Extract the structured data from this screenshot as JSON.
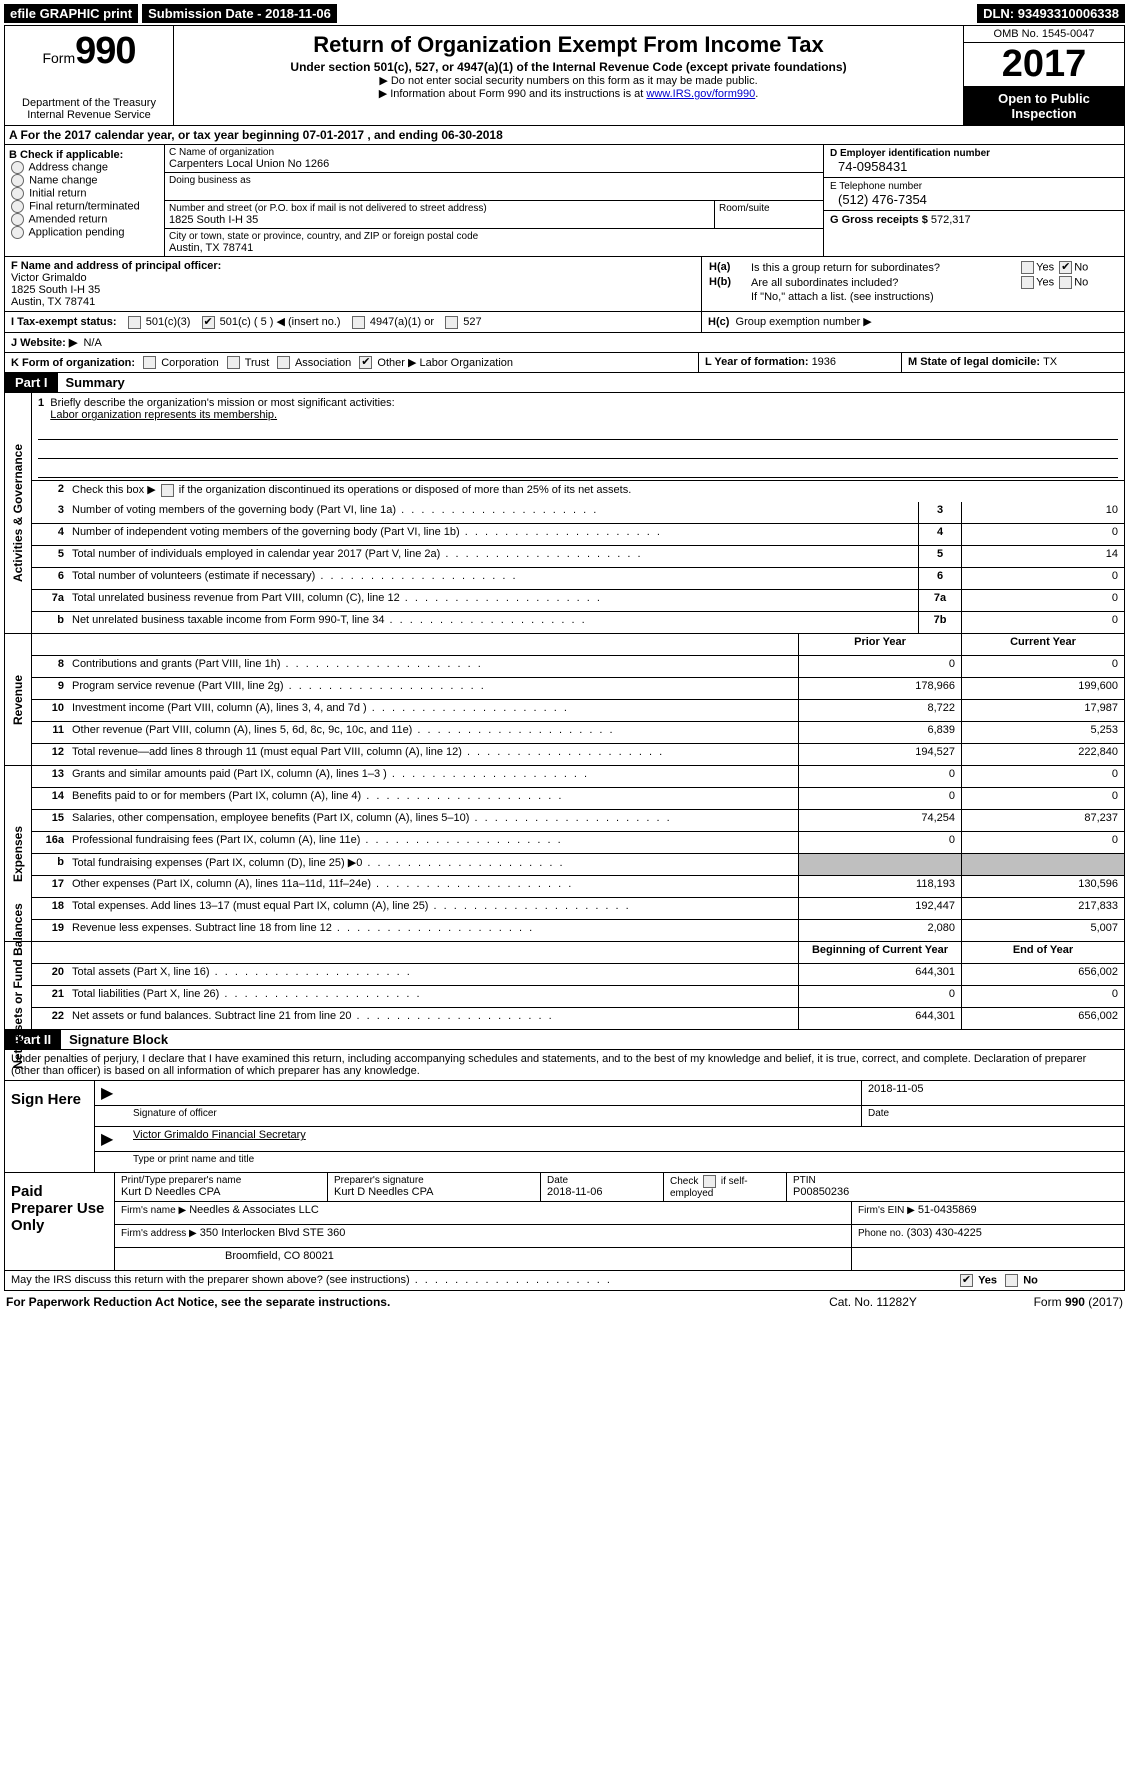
{
  "topbar": {
    "efile": "efile GRAPHIC print",
    "submission_label": "Submission Date - ",
    "submission_date": "2018-11-06",
    "dln_label": "DLN: ",
    "dln": "93493310006338"
  },
  "header": {
    "form_word": "Form",
    "form_num": "990",
    "dept1": "Department of the Treasury",
    "dept2": "Internal Revenue Service",
    "title": "Return of Organization Exempt From Income Tax",
    "sub": "Under section 501(c), 527, or 4947(a)(1) of the Internal Revenue Code (except private foundations)",
    "note1": "▶ Do not enter social security numbers on this form as it may be made public.",
    "note2_pre": "▶ Information about Form 990 and its instructions is at ",
    "note2_link": "www.IRS.gov/form990",
    "omb": "OMB No. 1545-0047",
    "year": "2017",
    "inspect": "Open to Public Inspection"
  },
  "lineA": "A  For the 2017 calendar year, or tax year beginning 07-01-2017   , and ending 06-30-2018",
  "colB": {
    "title": "B Check if applicable:",
    "opts": [
      "Address change",
      "Name change",
      "Initial return",
      "Final return/terminated",
      "Amended return",
      "Application pending"
    ]
  },
  "colC": {
    "name_lbl": "C Name of organization",
    "name": "Carpenters Local Union No 1266",
    "dba_lbl": "Doing business as",
    "addr_lbl": "Number and street (or P.O. box if mail is not delivered to street address)",
    "addr": "1825 South I-H 35",
    "suite_lbl": "Room/suite",
    "city_lbl": "City or town, state or province, country, and ZIP or foreign postal code",
    "city": "Austin, TX  78741"
  },
  "colD": {
    "ein_lbl": "D Employer identification number",
    "ein": "74-0958431",
    "tel_lbl": "E Telephone number",
    "tel": "(512) 476-7354",
    "gross_lbl": "G Gross receipts $ ",
    "gross": "572,317"
  },
  "rowF": {
    "lbl": "F  Name and address of principal officer:",
    "name": "Victor Grimaldo",
    "addr": "1825 South I-H 35",
    "city": "Austin, TX  78741"
  },
  "rowH": {
    "a": "Is this a group return for subordinates?",
    "b": "Are all subordinates included?",
    "bnote": "If \"No,\" attach a list. (see instructions)",
    "c": "Group exemption number ▶",
    "yes": "Yes",
    "no": "No"
  },
  "rowI": {
    "lbl": "I  Tax-exempt status:",
    "o1": "501(c)(3)",
    "o2": "501(c) ( 5 ) ◀ (insert no.)",
    "o3": "4947(a)(1) or",
    "o4": "527"
  },
  "rowJ": {
    "lbl": "J  Website: ▶",
    "val": "N/A"
  },
  "rowK": {
    "lbl": "K Form of organization:",
    "c1": "Corporation",
    "c2": "Trust",
    "c3": "Association",
    "c4": "Other ▶",
    "other": "Labor Organization",
    "L": "L Year of formation: ",
    "Lval": "1936",
    "M": "M State of legal domicile: ",
    "Mval": "TX"
  },
  "part1": {
    "blk": "Part I",
    "ttl": "Summary"
  },
  "summary": {
    "gov_label": "Activities & Governance",
    "rev_label": "Revenue",
    "exp_label": "Expenses",
    "net_label": "Net Assets or Fund Balances",
    "l1": "Briefly describe the organization's mission or most significant activities:",
    "mission": "Labor organization represents its membership.",
    "l2": "Check this box ▶        if the organization discontinued its operations or disposed of more than 25% of its net assets.",
    "lines_gov": [
      {
        "n": "3",
        "t": "Number of voting members of the governing body (Part VI, line 1a)",
        "b": "3",
        "v": "10"
      },
      {
        "n": "4",
        "t": "Number of independent voting members of the governing body (Part VI, line 1b)",
        "b": "4",
        "v": "0"
      },
      {
        "n": "5",
        "t": "Total number of individuals employed in calendar year 2017 (Part V, line 2a)",
        "b": "5",
        "v": "14"
      },
      {
        "n": "6",
        "t": "Total number of volunteers (estimate if necessary)",
        "b": "6",
        "v": "0"
      },
      {
        "n": "7a",
        "t": "Total unrelated business revenue from Part VIII, column (C), line 12",
        "b": "7a",
        "v": "0"
      },
      {
        "n": "b",
        "t": "Net unrelated business taxable income from Form 990-T, line 34",
        "b": "7b",
        "v": "0"
      }
    ],
    "hdr_prior": "Prior Year",
    "hdr_curr": "Current Year",
    "lines_rev": [
      {
        "n": "8",
        "t": "Contributions and grants (Part VIII, line 1h)",
        "p": "0",
        "c": "0"
      },
      {
        "n": "9",
        "t": "Program service revenue (Part VIII, line 2g)",
        "p": "178,966",
        "c": "199,600"
      },
      {
        "n": "10",
        "t": "Investment income (Part VIII, column (A), lines 3, 4, and 7d )",
        "p": "8,722",
        "c": "17,987"
      },
      {
        "n": "11",
        "t": "Other revenue (Part VIII, column (A), lines 5, 6d, 8c, 9c, 10c, and 11e)",
        "p": "6,839",
        "c": "5,253"
      },
      {
        "n": "12",
        "t": "Total revenue—add lines 8 through 11 (must equal Part VIII, column (A), line 12)",
        "p": "194,527",
        "c": "222,840"
      }
    ],
    "lines_exp": [
      {
        "n": "13",
        "t": "Grants and similar amounts paid (Part IX, column (A), lines 1–3 )",
        "p": "0",
        "c": "0"
      },
      {
        "n": "14",
        "t": "Benefits paid to or for members (Part IX, column (A), line 4)",
        "p": "0",
        "c": "0"
      },
      {
        "n": "15",
        "t": "Salaries, other compensation, employee benefits (Part IX, column (A), lines 5–10)",
        "p": "74,254",
        "c": "87,237"
      },
      {
        "n": "16a",
        "t": "Professional fundraising fees (Part IX, column (A), line 11e)",
        "p": "0",
        "c": "0"
      },
      {
        "n": "b",
        "t": "Total fundraising expenses (Part IX, column (D), line 25) ▶0",
        "p": "",
        "c": "",
        "shade": true
      },
      {
        "n": "17",
        "t": "Other expenses (Part IX, column (A), lines 11a–11d, 11f–24e)",
        "p": "118,193",
        "c": "130,596"
      },
      {
        "n": "18",
        "t": "Total expenses. Add lines 13–17 (must equal Part IX, column (A), line 25)",
        "p": "192,447",
        "c": "217,833"
      },
      {
        "n": "19",
        "t": "Revenue less expenses. Subtract line 18 from line 12",
        "p": "2,080",
        "c": "5,007"
      }
    ],
    "hdr_beg": "Beginning of Current Year",
    "hdr_end": "End of Year",
    "lines_net": [
      {
        "n": "20",
        "t": "Total assets (Part X, line 16)",
        "p": "644,301",
        "c": "656,002"
      },
      {
        "n": "21",
        "t": "Total liabilities (Part X, line 26)",
        "p": "0",
        "c": "0"
      },
      {
        "n": "22",
        "t": "Net assets or fund balances. Subtract line 21 from line 20",
        "p": "644,301",
        "c": "656,002"
      }
    ]
  },
  "part2": {
    "blk": "Part II",
    "ttl": "Signature Block"
  },
  "sig": {
    "perjury": "Under penalties of perjury, I declare that I have examined this return, including accompanying schedules and statements, and to the best of my knowledge and belief, it is true, correct, and complete. Declaration of preparer (other than officer) is based on all information of which preparer has any knowledge.",
    "sign_here": "Sign Here",
    "sig_lbl": "Signature of officer",
    "date": "2018-11-05",
    "date_lbl": "Date",
    "name": "Victor Grimaldo Financial Secretary",
    "name_lbl": "Type or print name and title"
  },
  "paid": {
    "lbl": "Paid Preparer Use Only",
    "r1": {
      "a": "Print/Type preparer's name",
      "av": "Kurt D Needles CPA",
      "b": "Preparer's signature",
      "bv": "Kurt D Needles CPA",
      "c": "Date",
      "cv": "2018-11-06",
      "d": "Check        if self-employed",
      "e": "PTIN",
      "ev": "P00850236"
    },
    "r2": {
      "a": "Firm's name      ▶",
      "av": "Needles & Associates LLC",
      "b": "Firm's EIN ▶",
      "bv": "51-0435869"
    },
    "r3": {
      "a": "Firm's address ▶",
      "av": "350 Interlocken Blvd STE 360",
      "b": "Phone no.",
      "bv": "(303) 430-4225"
    },
    "r4": {
      "av": "Broomfield, CO  80021"
    }
  },
  "discuss": "May the IRS discuss this return with the preparer shown above? (see instructions)",
  "footer": {
    "l": "For Paperwork Reduction Act Notice, see the separate instructions.",
    "c": "Cat. No. 11282Y",
    "r": "Form 990 (2017)"
  }
}
